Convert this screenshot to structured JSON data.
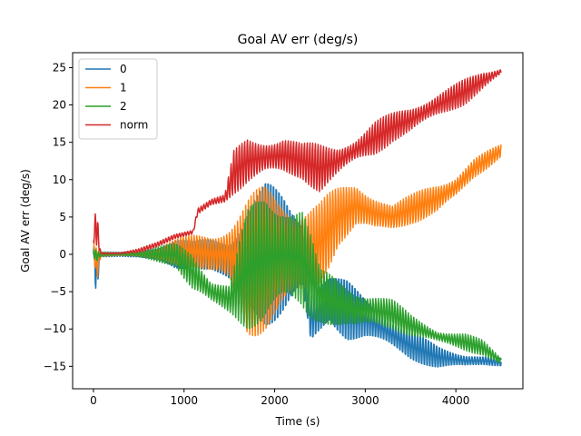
{
  "chart_data": {
    "type": "line",
    "title": "Goal AV err (deg/s)",
    "xlabel": "Time (s)",
    "ylabel": "Goal AV err (deg/s)",
    "xlim": [
      -230,
      4740
    ],
    "ylim": [
      -18,
      27
    ],
    "xticks": [
      0,
      1000,
      2000,
      3000,
      4000
    ],
    "yticks": [
      -15,
      -10,
      -5,
      0,
      5,
      10,
      15,
      20,
      25
    ],
    "ytick_labels": [
      "−15",
      "−10",
      "−5",
      "0",
      "5",
      "10",
      "15",
      "20",
      "25"
    ],
    "grid": false,
    "legend_position": "upper-left",
    "series": [
      {
        "name": "0",
        "color": "#1f77b4",
        "envelope": [
          [
            0,
            -2,
            2
          ],
          [
            30,
            -6.3,
            1
          ],
          [
            80,
            -0.4,
            0.4
          ],
          [
            300,
            -0.3,
            0.3
          ],
          [
            500,
            -0.6,
            0.6
          ],
          [
            700,
            -1.5,
            1.5
          ],
          [
            900,
            -2.5,
            2.5
          ],
          [
            1100,
            -2,
            2
          ],
          [
            1300,
            -3,
            3
          ],
          [
            1500,
            -6,
            4
          ],
          [
            1700,
            -10,
            9
          ],
          [
            1900,
            -11,
            11
          ],
          [
            2100,
            -10,
            10
          ],
          [
            2300,
            -8,
            8
          ],
          [
            2400,
            -15,
            -2
          ],
          [
            2600,
            -10,
            -2
          ],
          [
            2800,
            -12,
            -3
          ],
          [
            3000,
            -12,
            -5
          ],
          [
            3200,
            -13,
            -7
          ],
          [
            3500,
            -14.5,
            -10
          ],
          [
            3800,
            -15.5,
            -12
          ],
          [
            4100,
            -15.5,
            -13
          ],
          [
            4300,
            -15,
            -13.5
          ],
          [
            4500,
            -15,
            -13.8
          ]
        ],
        "period": 30
      },
      {
        "name": "1",
        "color": "#ff7f0e",
        "envelope": [
          [
            0,
            1.5,
            2
          ],
          [
            30,
            -4.3,
            1
          ],
          [
            80,
            -0.3,
            0.3
          ],
          [
            300,
            -0.2,
            0.2
          ],
          [
            500,
            -0.5,
            0.5
          ],
          [
            700,
            -1,
            1
          ],
          [
            900,
            -1.5,
            2
          ],
          [
            1100,
            -2,
            3
          ],
          [
            1300,
            -4,
            4
          ],
          [
            1500,
            -5,
            5
          ],
          [
            1700,
            -11.5,
            8
          ],
          [
            1900,
            -11,
            10
          ],
          [
            2100,
            -10,
            10
          ],
          [
            2300,
            -9,
            9
          ],
          [
            2500,
            -5,
            8
          ],
          [
            2700,
            1,
            9
          ],
          [
            2900,
            3,
            10
          ],
          [
            3100,
            2,
            9
          ],
          [
            3300,
            3,
            7
          ],
          [
            3500,
            4,
            8
          ],
          [
            3800,
            5,
            10
          ],
          [
            4000,
            7,
            11
          ],
          [
            4200,
            10,
            13
          ],
          [
            4500,
            13,
            14.8
          ]
        ],
        "period": 30
      },
      {
        "name": "2",
        "color": "#2ca02c",
        "envelope": [
          [
            0,
            -0.5,
            1
          ],
          [
            30,
            -1,
            0.5
          ],
          [
            80,
            -0.3,
            0.3
          ],
          [
            300,
            -0.2,
            0.2
          ],
          [
            500,
            -0.5,
            0.5
          ],
          [
            700,
            -1,
            1
          ],
          [
            900,
            -1.5,
            1.5
          ],
          [
            1100,
            -6,
            1
          ],
          [
            1300,
            -7,
            -3
          ],
          [
            1500,
            -8,
            -4
          ],
          [
            1700,
            -10,
            6
          ],
          [
            1900,
            -11,
            10
          ],
          [
            2100,
            -10,
            10
          ],
          [
            2300,
            -9,
            8
          ],
          [
            2500,
            -9,
            -2
          ],
          [
            2700,
            -10,
            -3
          ],
          [
            2900,
            -11,
            -4
          ],
          [
            3100,
            -10,
            -5
          ],
          [
            3300,
            -10,
            -6
          ],
          [
            3500,
            -11,
            -8
          ],
          [
            3800,
            -12,
            -10
          ],
          [
            4100,
            -13,
            -10.5
          ],
          [
            4300,
            -13.5,
            -11.5
          ],
          [
            4500,
            -14.8,
            -13.8
          ]
        ],
        "period": 30
      },
      {
        "name": "norm",
        "color": "#d62728",
        "envelope": [
          [
            0,
            1.5,
            2.5
          ],
          [
            30,
            0.2,
            8
          ],
          [
            80,
            0,
            0.2
          ],
          [
            300,
            0,
            0.3
          ],
          [
            500,
            0.2,
            0.8
          ],
          [
            700,
            1,
            1.6
          ],
          [
            900,
            2,
            2.8
          ],
          [
            1100,
            2.5,
            3.5
          ],
          [
            1150,
            5,
            6.5
          ],
          [
            1300,
            6.5,
            7.5
          ],
          [
            1450,
            7,
            8
          ],
          [
            1550,
            8,
            14
          ],
          [
            1700,
            9,
            16
          ],
          [
            1900,
            10,
            16
          ],
          [
            2100,
            10,
            16.5
          ],
          [
            2300,
            10,
            15
          ],
          [
            2500,
            8,
            15
          ],
          [
            2700,
            10,
            15
          ],
          [
            2900,
            12,
            16
          ],
          [
            3100,
            13,
            18
          ],
          [
            3300,
            15,
            19
          ],
          [
            3500,
            16,
            20
          ],
          [
            3800,
            18,
            22
          ],
          [
            4100,
            20,
            23.5
          ],
          [
            4300,
            22,
            24.5
          ],
          [
            4500,
            24,
            25
          ]
        ],
        "period": 30
      }
    ]
  }
}
